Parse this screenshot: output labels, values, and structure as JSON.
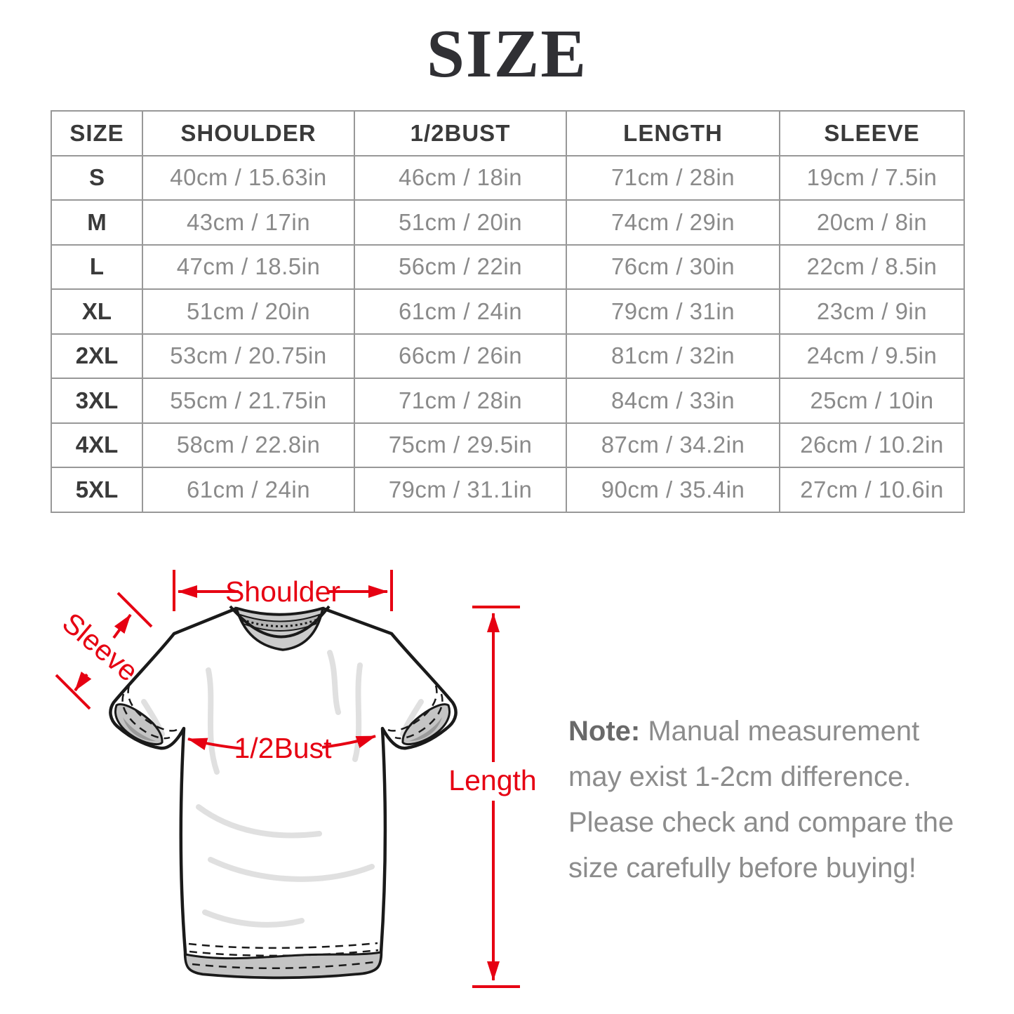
{
  "title": "SIZE",
  "table": {
    "headers": [
      "SIZE",
      "SHOULDER",
      "1/2BUST",
      "LENGTH",
      "SLEEVE"
    ],
    "rows": [
      [
        "S",
        "40cm / 15.63in",
        "46cm / 18in",
        "71cm / 28in",
        "19cm / 7.5in"
      ],
      [
        "M",
        "43cm / 17in",
        "51cm / 20in",
        "74cm / 29in",
        "20cm / 8in"
      ],
      [
        "L",
        "47cm / 18.5in",
        "56cm / 22in",
        "76cm / 30in",
        "22cm / 8.5in"
      ],
      [
        "XL",
        "51cm / 20in",
        "61cm / 24in",
        "79cm / 31in",
        "23cm / 9in"
      ],
      [
        "2XL",
        "53cm / 20.75in",
        "66cm / 26in",
        "81cm / 32in",
        "24cm / 9.5in"
      ],
      [
        "3XL",
        "55cm / 21.75in",
        "71cm / 28in",
        "84cm / 33in",
        "25cm / 10in"
      ],
      [
        "4XL",
        "58cm / 22.8in",
        "75cm / 29.5in",
        "87cm / 34.2in",
        "26cm / 10.2in"
      ],
      [
        "5XL",
        "61cm / 24in",
        "79cm / 31.1in",
        "90cm / 35.4in",
        "27cm / 10.6in"
      ]
    ]
  },
  "diagram": {
    "labels": {
      "shoulder": "Shoulder",
      "sleeve": "Sleeve",
      "half_bust": "1/2Bust",
      "length": "Length"
    }
  },
  "note": {
    "prefix": "Note:",
    "body": " Manual measurement may exist 1-2cm difference. Please check and compare the size carefully before buying!"
  },
  "colors": {
    "accent_red": "#e60012",
    "title_color": "#303034",
    "header_text": "#3a3a3a",
    "cell_text": "#8a8a8a",
    "table_border": "#989898",
    "note_text": "#8c8c8c",
    "note_prefix_text": "#696969",
    "outline": "#1a1a1a",
    "collar_gray": "#cbcbcb",
    "band_gray": "#b3b3b3",
    "cuff_gray": "#c4c4c4",
    "shadow_gray": "#9b9b9b",
    "wrinkle_gray": "#e0e0e0"
  }
}
